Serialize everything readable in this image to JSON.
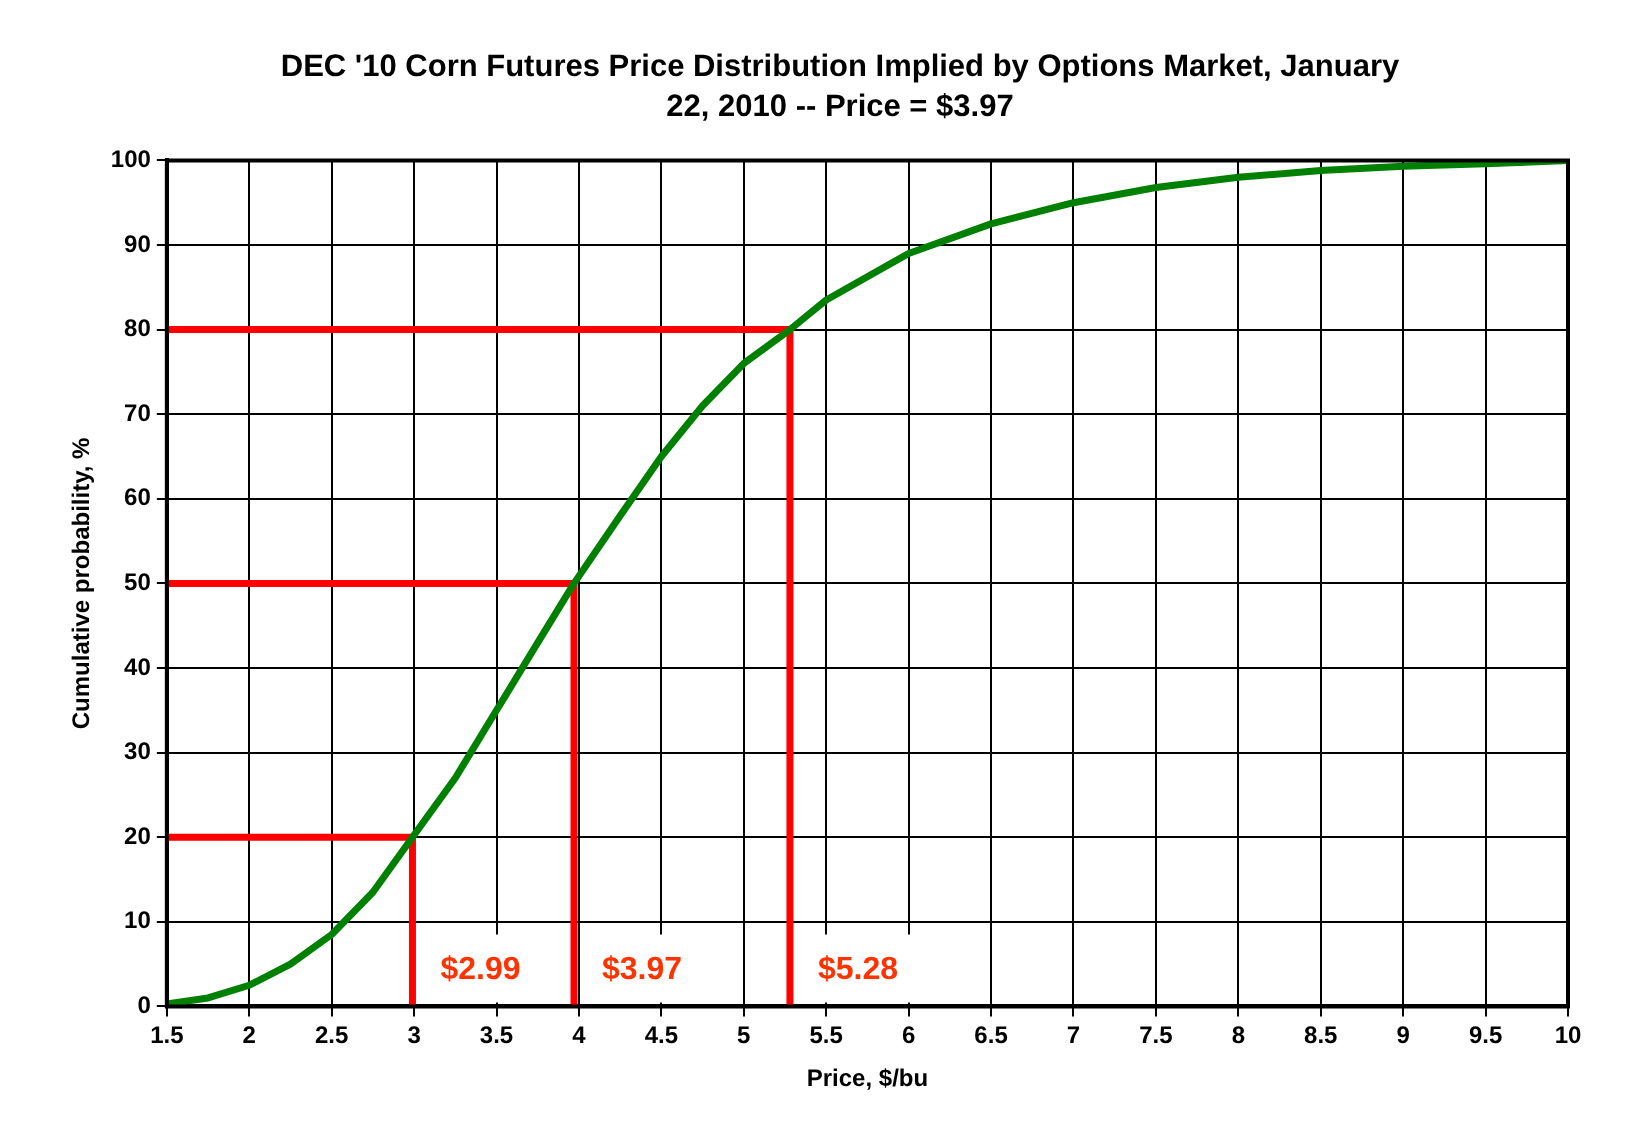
{
  "chart_data": {
    "type": "line",
    "title": "DEC '10 Corn Futures Price Distribution Implied by Options Market, January 22, 2010 -- Price = $3.97",
    "xlabel": "Price, $/bu",
    "ylabel": "Cumulative probability, %",
    "x": [
      1.5,
      1.75,
      2,
      2.25,
      2.5,
      2.75,
      2.99,
      3.25,
      3.5,
      3.75,
      3.97,
      4.25,
      4.5,
      4.75,
      5,
      5.28,
      5.5,
      6,
      6.5,
      7,
      7.5,
      8,
      8.5,
      9,
      9.5,
      10
    ],
    "series": [
      {
        "color": "#008000",
        "values": [
          0.3,
          1,
          2.5,
          5,
          8.5,
          13.5,
          20,
          27,
          35,
          43,
          50,
          58,
          65,
          71,
          76,
          80,
          83.5,
          89,
          92.5,
          95,
          96.8,
          98,
          98.8,
          99.3,
          99.6,
          100
        ]
      },
      {
        "type": "line",
        "color": "#ff0000",
        "x": [
          1.5,
          2.99,
          2.99
        ],
        "values": [
          20,
          20,
          0
        ]
      },
      {
        "type": "line",
        "color": "#ff0000",
        "x": [
          1.5,
          3.97,
          3.97
        ],
        "values": [
          50,
          50,
          0
        ]
      },
      {
        "type": "line",
        "color": "#ff0000",
        "x": [
          1.5,
          5.28,
          5.28
        ],
        "values": [
          80,
          80,
          0
        ]
      }
    ],
    "annotations": [
      {
        "text": "$2.99",
        "x": 2.99,
        "y": 0
      },
      {
        "text": "$3.97",
        "x": 3.97,
        "y": 0
      },
      {
        "text": "$5.28",
        "x": 5.28,
        "y": 0
      }
    ],
    "xlim": [
      1.5,
      10
    ],
    "xticks": [
      1.5,
      2,
      2.5,
      3,
      3.5,
      4,
      4.5,
      5,
      5.5,
      6,
      6.5,
      7,
      7.5,
      8,
      8.5,
      9,
      9.5,
      10
    ],
    "ylim": [
      0,
      100
    ],
    "yticks": [
      0,
      10,
      20,
      30,
      40,
      50,
      60,
      70,
      80,
      90,
      100
    ],
    "grid": true,
    "legend": false,
    "marker": "none",
    "line_style": "solid"
  }
}
